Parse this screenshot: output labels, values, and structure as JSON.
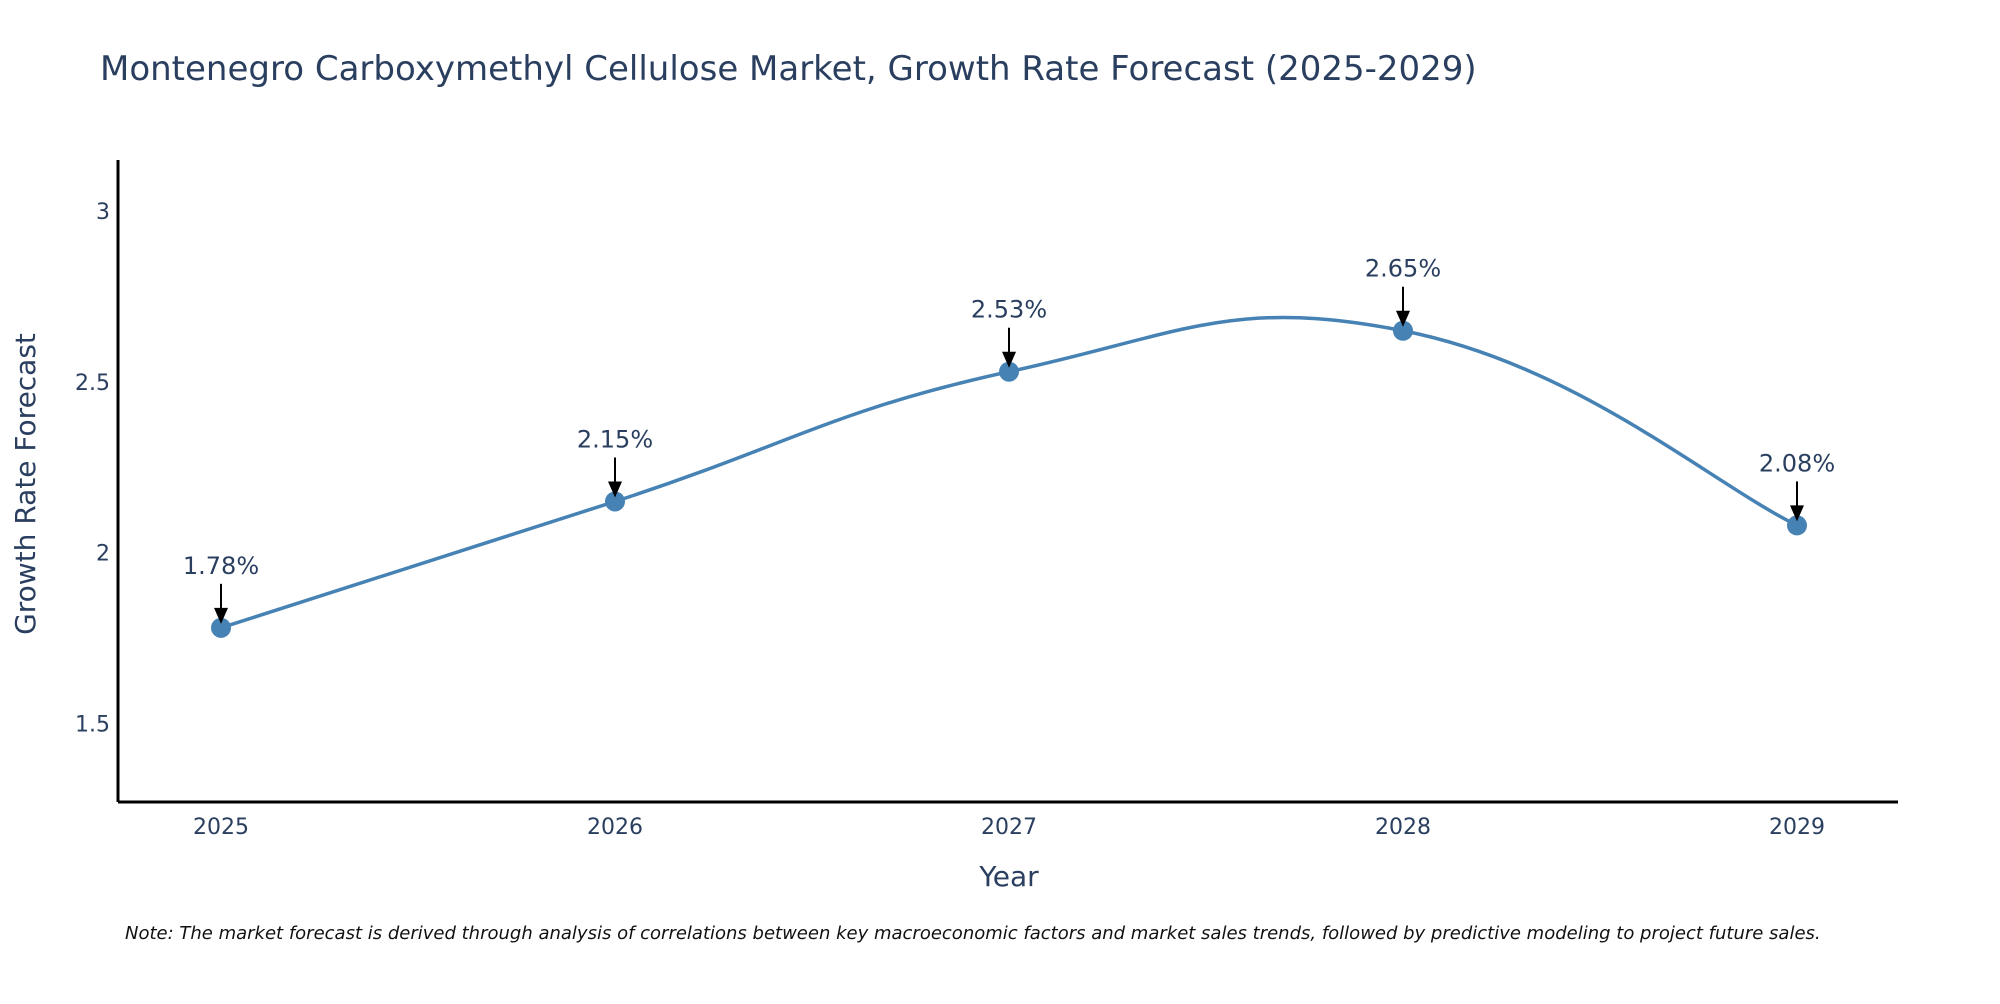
{
  "chart_data": {
    "type": "line",
    "title": "Montenegro Carboxymethyl Cellulose Market, Growth Rate Forecast (2025-2029)",
    "xlabel": "Year",
    "ylabel": "Growth Rate Forecast",
    "categories": [
      "2025",
      "2026",
      "2027",
      "2028",
      "2029"
    ],
    "series": [
      {
        "name": "Growth Rate Forecast",
        "values": [
          1.78,
          2.15,
          2.53,
          2.65,
          2.08
        ],
        "labels": [
          "1.78%",
          "2.15%",
          "2.53%",
          "2.65%",
          "2.08%"
        ]
      }
    ],
    "yticks": [
      1.5,
      2,
      2.5,
      3
    ],
    "ytick_labels": [
      "1.5",
      "2",
      "2.5",
      "3"
    ],
    "ylim": [
      1.27,
      3.15
    ],
    "grid": false,
    "line_color": "#4682b4",
    "note": "Note: The market forecast is derived through analysis of correlations between key macroeconomic factors and market sales trends, followed by predictive modeling to project future sales."
  }
}
